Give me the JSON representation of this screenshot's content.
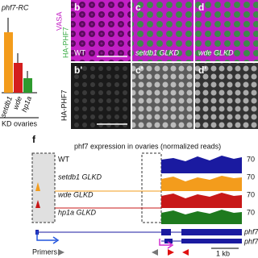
{
  "panel_a": {
    "title": "phf7-RC",
    "bar_labels": [
      "setdb1",
      "wde",
      "hp1a"
    ],
    "xlabel": "KD ovaries"
  },
  "panel_images": {
    "row_label_top": [
      "VASA",
      "HA-PHF7"
    ],
    "row_label_bottom": "HA-PHF7",
    "top": [
      {
        "letter": "b",
        "label": "WT"
      },
      {
        "letter": "c",
        "label": "setdb1 GLKD"
      },
      {
        "letter": "d",
        "label": "wde GLKD"
      }
    ],
    "bottom_letters": [
      "b'",
      "c'",
      "d'"
    ]
  },
  "panel_f": {
    "letter": "f",
    "title": "phf7 expression in ovaries (normalized reads)",
    "tracks": [
      {
        "name": "WT",
        "max": 70
      },
      {
        "name": "setdb1 GLKD",
        "max": 70
      },
      {
        "name": "wde GLKD",
        "max": 70
      },
      {
        "name": "hp1a GLKD",
        "max": 70
      }
    ],
    "genes": [
      "phf7",
      "phf7"
    ],
    "primers_label": "Primers",
    "scale": "1 kb"
  }
}
